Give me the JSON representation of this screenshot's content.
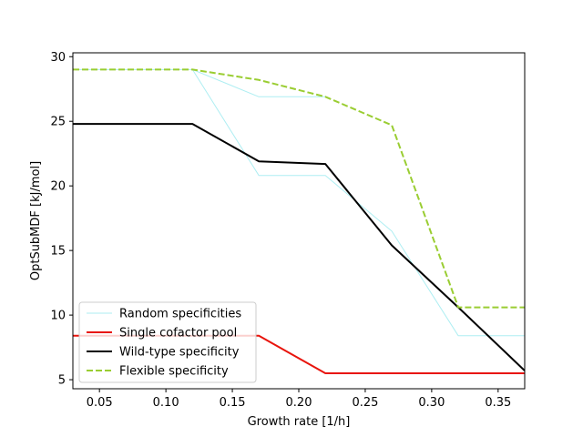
{
  "chart_data": {
    "type": "line",
    "title": "",
    "xlabel": "Growth rate [1/h]",
    "ylabel": "OptSubMDF [kJ/mol]",
    "xlim": [
      0.03,
      0.37
    ],
    "ylim": [
      4.3,
      30.3
    ],
    "xticks": [
      0.05,
      0.1,
      0.15,
      0.2,
      0.25,
      0.3,
      0.35
    ],
    "xtick_labels": [
      "0.05",
      "0.10",
      "0.15",
      "0.20",
      "0.25",
      "0.30",
      "0.35"
    ],
    "yticks": [
      5,
      10,
      15,
      20,
      25,
      30
    ],
    "ytick_labels": [
      "5",
      "10",
      "15",
      "20",
      "25",
      "30"
    ],
    "grid": false,
    "legend_position": "lower-left",
    "series": [
      {
        "name": "Random specificities",
        "color": "#aeeef2",
        "style": "solid",
        "lines": [
          {
            "x": [
              0.03,
              0.12,
              0.17,
              0.22
            ],
            "y": [
              29.0,
              29.0,
              26.9,
              26.9
            ]
          },
          {
            "x": [
              0.12,
              0.17,
              0.22,
              0.27,
              0.32,
              0.37
            ],
            "y": [
              29.0,
              20.8,
              20.8,
              16.5,
              8.4,
              8.4
            ]
          }
        ]
      },
      {
        "name": "Single cofactor pool",
        "color": "#e8140c",
        "style": "solid",
        "lines": [
          {
            "x": [
              0.03,
              0.17,
              0.22,
              0.37
            ],
            "y": [
              8.4,
              8.4,
              5.5,
              5.5
            ]
          }
        ]
      },
      {
        "name": "Wild-type specificity",
        "color": "#000000",
        "style": "solid",
        "lines": [
          {
            "x": [
              0.03,
              0.12,
              0.17,
              0.22,
              0.27,
              0.32,
              0.37
            ],
            "y": [
              24.8,
              24.8,
              21.9,
              21.7,
              15.4,
              10.6,
              5.7
            ]
          }
        ]
      },
      {
        "name": "Flexible specificity",
        "color": "#9acd32",
        "style": "dashed",
        "lines": [
          {
            "x": [
              0.03,
              0.12,
              0.17,
              0.22,
              0.27,
              0.32,
              0.37
            ],
            "y": [
              29.0,
              29.0,
              28.2,
              26.9,
              24.7,
              10.6,
              10.6
            ]
          }
        ]
      }
    ]
  }
}
